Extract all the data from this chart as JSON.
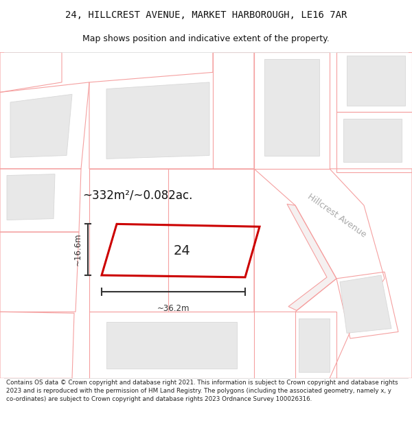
{
  "title_line1": "24, HILLCREST AVENUE, MARKET HARBOROUGH, LE16 7AR",
  "title_line2": "Map shows position and indicative extent of the property.",
  "footer_text": "Contains OS data © Crown copyright and database right 2021. This information is subject to Crown copyright and database rights 2023 and is reproduced with the permission of HM Land Registry. The polygons (including the associated geometry, namely x, y co-ordinates) are subject to Crown copyright and database rights 2023 Ordnance Survey 100026316.",
  "area_label": "~332m²/~0.082ac.",
  "width_label": "~36.2m",
  "height_label": "~16.6m",
  "plot_number": "24",
  "street_label": "Hillcrest Avenue",
  "bg_color": "#ffffff",
  "plot_color": "#cc0000",
  "building_fill": "#e8e8e8",
  "parcel_outline": "#f5a0a0",
  "building_outline": "#d8d8d8",
  "dim_color": "#333333",
  "street_label_color": "#aaaaaa",
  "title_font": 10,
  "subtitle_font": 9
}
